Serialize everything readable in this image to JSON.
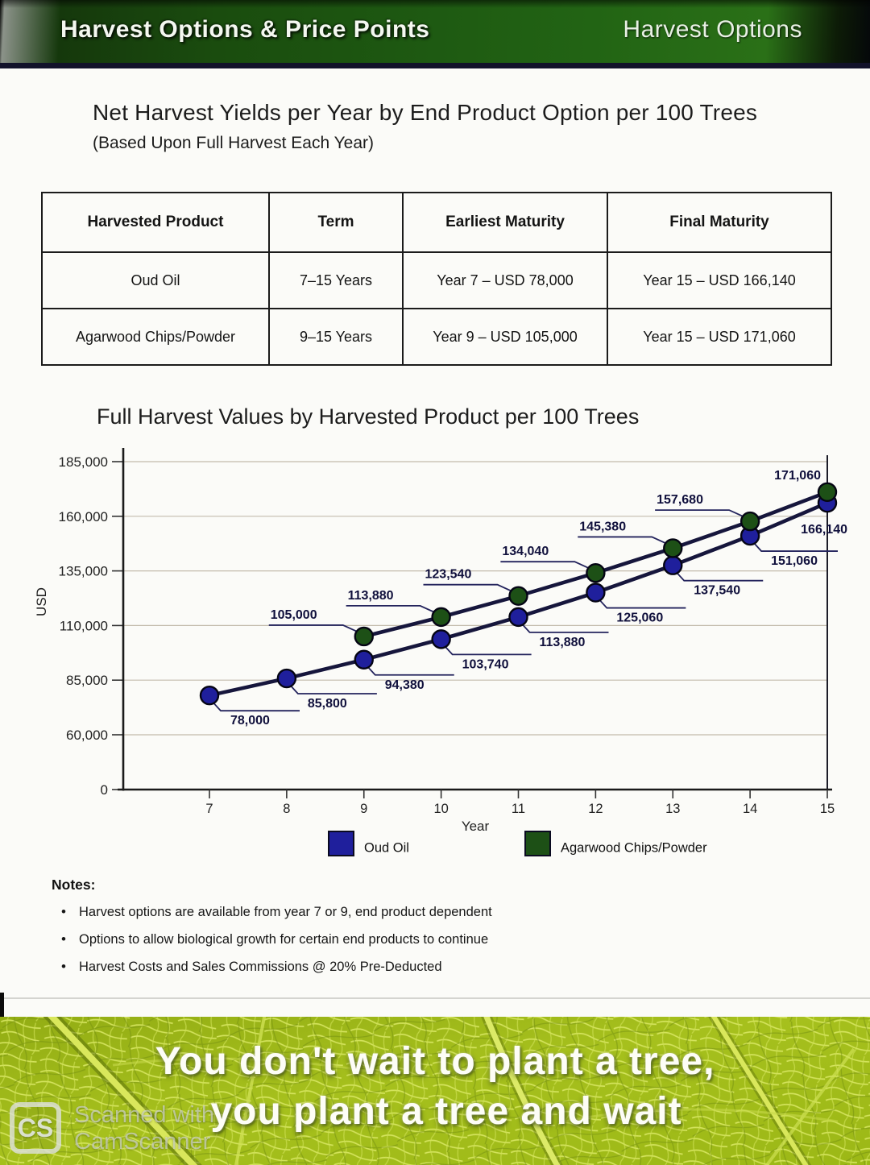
{
  "header": {
    "title_left": "Harvest Options & Price Points",
    "title_right": "Harvest Options"
  },
  "section1": {
    "title": "Net Harvest Yields per Year by End Product Option per 100 Trees",
    "subtitle": "(Based Upon Full Harvest Each Year)"
  },
  "table": {
    "columns": [
      "Harvested Product",
      "Term",
      "Earliest Maturity",
      "Final Maturity"
    ],
    "rows": [
      [
        "Oud Oil",
        "7–15 Years",
        "Year 7 – USD 78,000",
        "Year 15 – USD 166,140"
      ],
      [
        "Agarwood Chips/Powder",
        "9–15 Years",
        "Year 9 – USD 105,000",
        "Year 15 – USD 171,060"
      ]
    ]
  },
  "chart_data": {
    "type": "line",
    "title": "Full Harvest Values by Harvested Product per 100 Trees",
    "xlabel": "Year",
    "ylabel": "USD",
    "x_ticks": [
      7,
      8,
      9,
      10,
      11,
      12,
      13,
      14,
      15
    ],
    "y_ticks": [
      0,
      60000,
      85000,
      110000,
      135000,
      160000,
      185000
    ],
    "y_tick_labels": [
      "0",
      "60,000",
      "85,000",
      "110,000",
      "135,000",
      "160,000",
      "185,000"
    ],
    "grid": true,
    "legend_position": "bottom",
    "series": [
      {
        "name": "Oud Oil",
        "color": "#1f1f9c",
        "label_side": "below",
        "x": [
          7,
          8,
          9,
          10,
          11,
          12,
          13,
          14,
          15
        ],
        "values": [
          78000,
          85800,
          94380,
          103740,
          113880,
          125060,
          137540,
          151060,
          166140
        ],
        "labels": [
          "78,000",
          "85,800",
          "94,380",
          "103,740",
          "113,880",
          "125,060",
          "137,540",
          "151,060",
          "166,140"
        ]
      },
      {
        "name": "Agarwood Chips/Powder",
        "color": "#1d5016",
        "label_side": "above",
        "x": [
          9,
          10,
          11,
          12,
          13,
          14,
          15
        ],
        "values": [
          105000,
          113880,
          123540,
          134040,
          145380,
          157680,
          171060
        ],
        "labels": [
          "105,000",
          "113,880",
          "123,540",
          "134,040",
          "145,380",
          "157,680",
          "171,060"
        ]
      }
    ]
  },
  "notes": {
    "heading": "Notes:",
    "items": [
      "Harvest options are available from year 7 or 9, end product dependent",
      "Options to allow biological growth for certain end products to continue",
      "Harvest Costs and Sales Commissions @ 20% Pre-Deducted"
    ]
  },
  "footer": {
    "line1": "You don't wait to plant a tree,",
    "line2": "you plant a tree and wait"
  },
  "watermark": {
    "badge": "CS",
    "line1": "Scanned with",
    "line2": "CamScanner"
  }
}
